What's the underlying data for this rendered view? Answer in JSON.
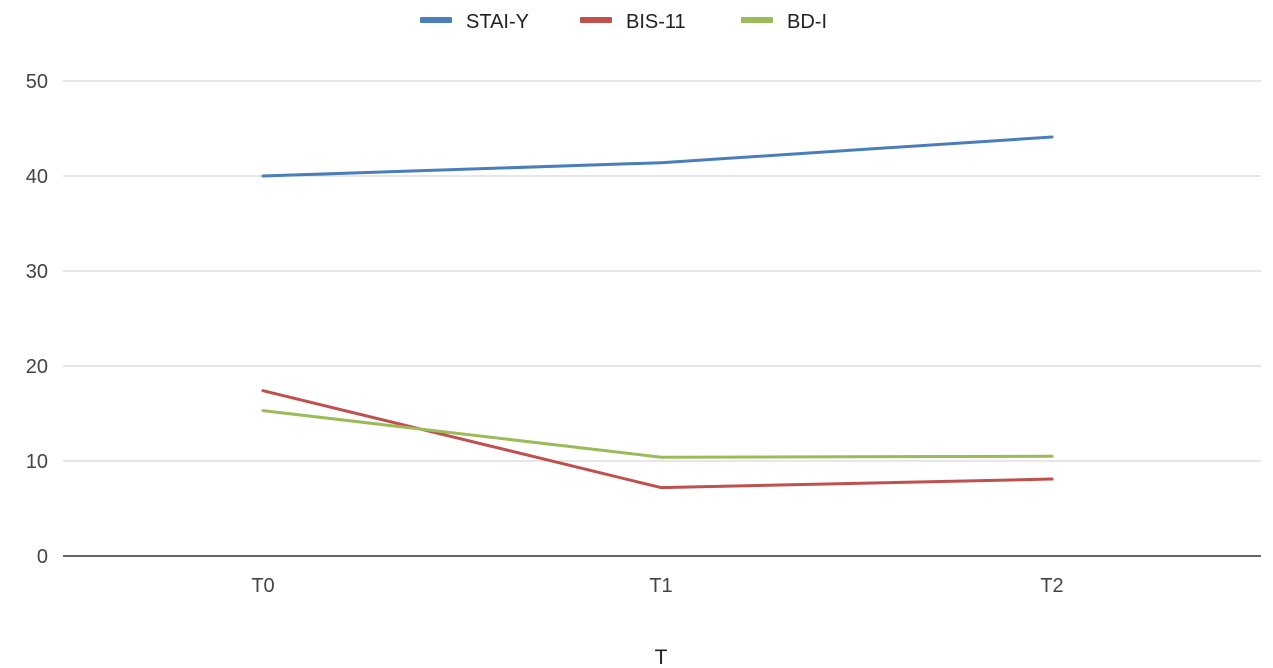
{
  "chart_data": {
    "type": "line",
    "title": "",
    "xlabel": "T",
    "ylabel": "",
    "categories": [
      "T0",
      "T1",
      "T2"
    ],
    "ylim": [
      0,
      50
    ],
    "yticks": [
      "0",
      "10",
      "20",
      "30",
      "40",
      "50"
    ],
    "grid": true,
    "legend_position": "top",
    "series": [
      {
        "name": "STAI-Y",
        "color": "#4a7ebb",
        "values": [
          40,
          41.4,
          44.1
        ]
      },
      {
        "name": "BIS-11",
        "color": "#c0504d",
        "values": [
          17.4,
          7.2,
          8.1
        ]
      },
      {
        "name": "BD-I",
        "color": "#9bbb59",
        "values": [
          15.3,
          10.4,
          10.5
        ]
      }
    ]
  }
}
